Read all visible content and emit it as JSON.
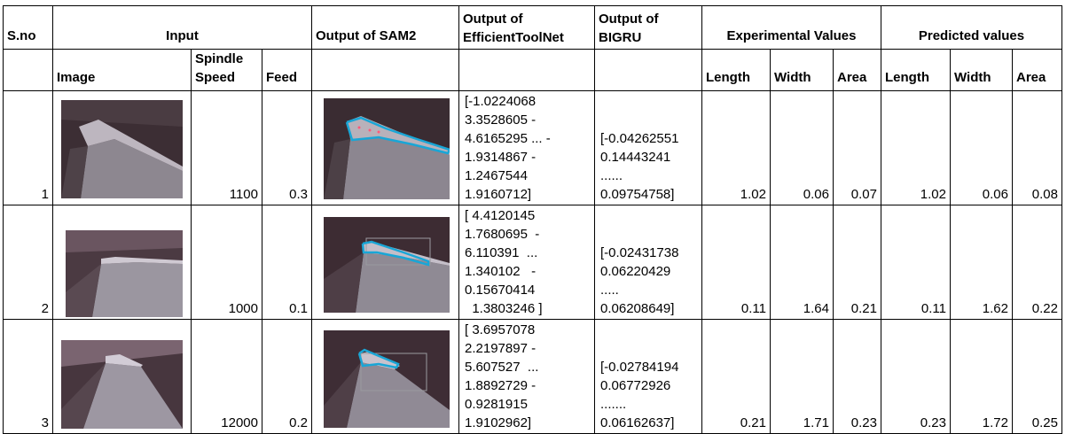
{
  "header": {
    "sno": "S.no",
    "input": "Input",
    "sam2": "Output of SAM2",
    "effnet": [
      "Output of",
      "EfficientToolNet"
    ],
    "bigru": [
      "Output of",
      "BIGRU"
    ],
    "experimental": "Experimental Values",
    "predicted": "Predicted values",
    "image": "Image",
    "spindle": [
      "Spindle",
      "Speed"
    ],
    "feed": "Feed",
    "length": "Length",
    "width": "Width",
    "area": "Area"
  },
  "rows": [
    {
      "sno": "1",
      "spindle": "1100",
      "feed": "0.3",
      "effnet": [
        "[-1.0224068",
        "3.3528605 -",
        "4.6165295 ... -",
        "1.9314867 -",
        "1.2467544",
        "1.9160712]"
      ],
      "bigru": [
        "[-0.04262551",
        "0.14443241",
        "......",
        "0.09754758]"
      ],
      "exp": [
        "1.02",
        "0.06",
        "0.07"
      ],
      "pred": [
        "1.02",
        "0.06",
        "0.08"
      ]
    },
    {
      "sno": "2",
      "spindle": "1000",
      "feed": "0.1",
      "effnet": [
        "[ 4.4120145",
        "1.7680695  -",
        "6.110391  ...",
        "1.340102   -",
        "0.15670414",
        "  1.3803246 ]"
      ],
      "bigru": [
        "[-0.02431738",
        "0.06220429",
        ".....",
        "0.06208649]"
      ],
      "exp": [
        "0.11",
        "1.64",
        "0.21"
      ],
      "pred": [
        "0.11",
        "1.62",
        "0.22"
      ]
    },
    {
      "sno": "3",
      "spindle": "12000",
      "feed": "0.2",
      "effnet": [
        "[ 3.6957078",
        "2.2197897 -",
        "5.607527  ...",
        "1.8892729 -",
        "0.9281915",
        "1.9102962]"
      ],
      "bigru": [
        "[-0.02784194",
        "0.06772926",
        ".......",
        "0.06162637]"
      ],
      "exp": [
        "0.21",
        "1.71",
        "0.23"
      ],
      "pred": [
        "0.23",
        "1.72",
        "0.25"
      ]
    }
  ]
}
